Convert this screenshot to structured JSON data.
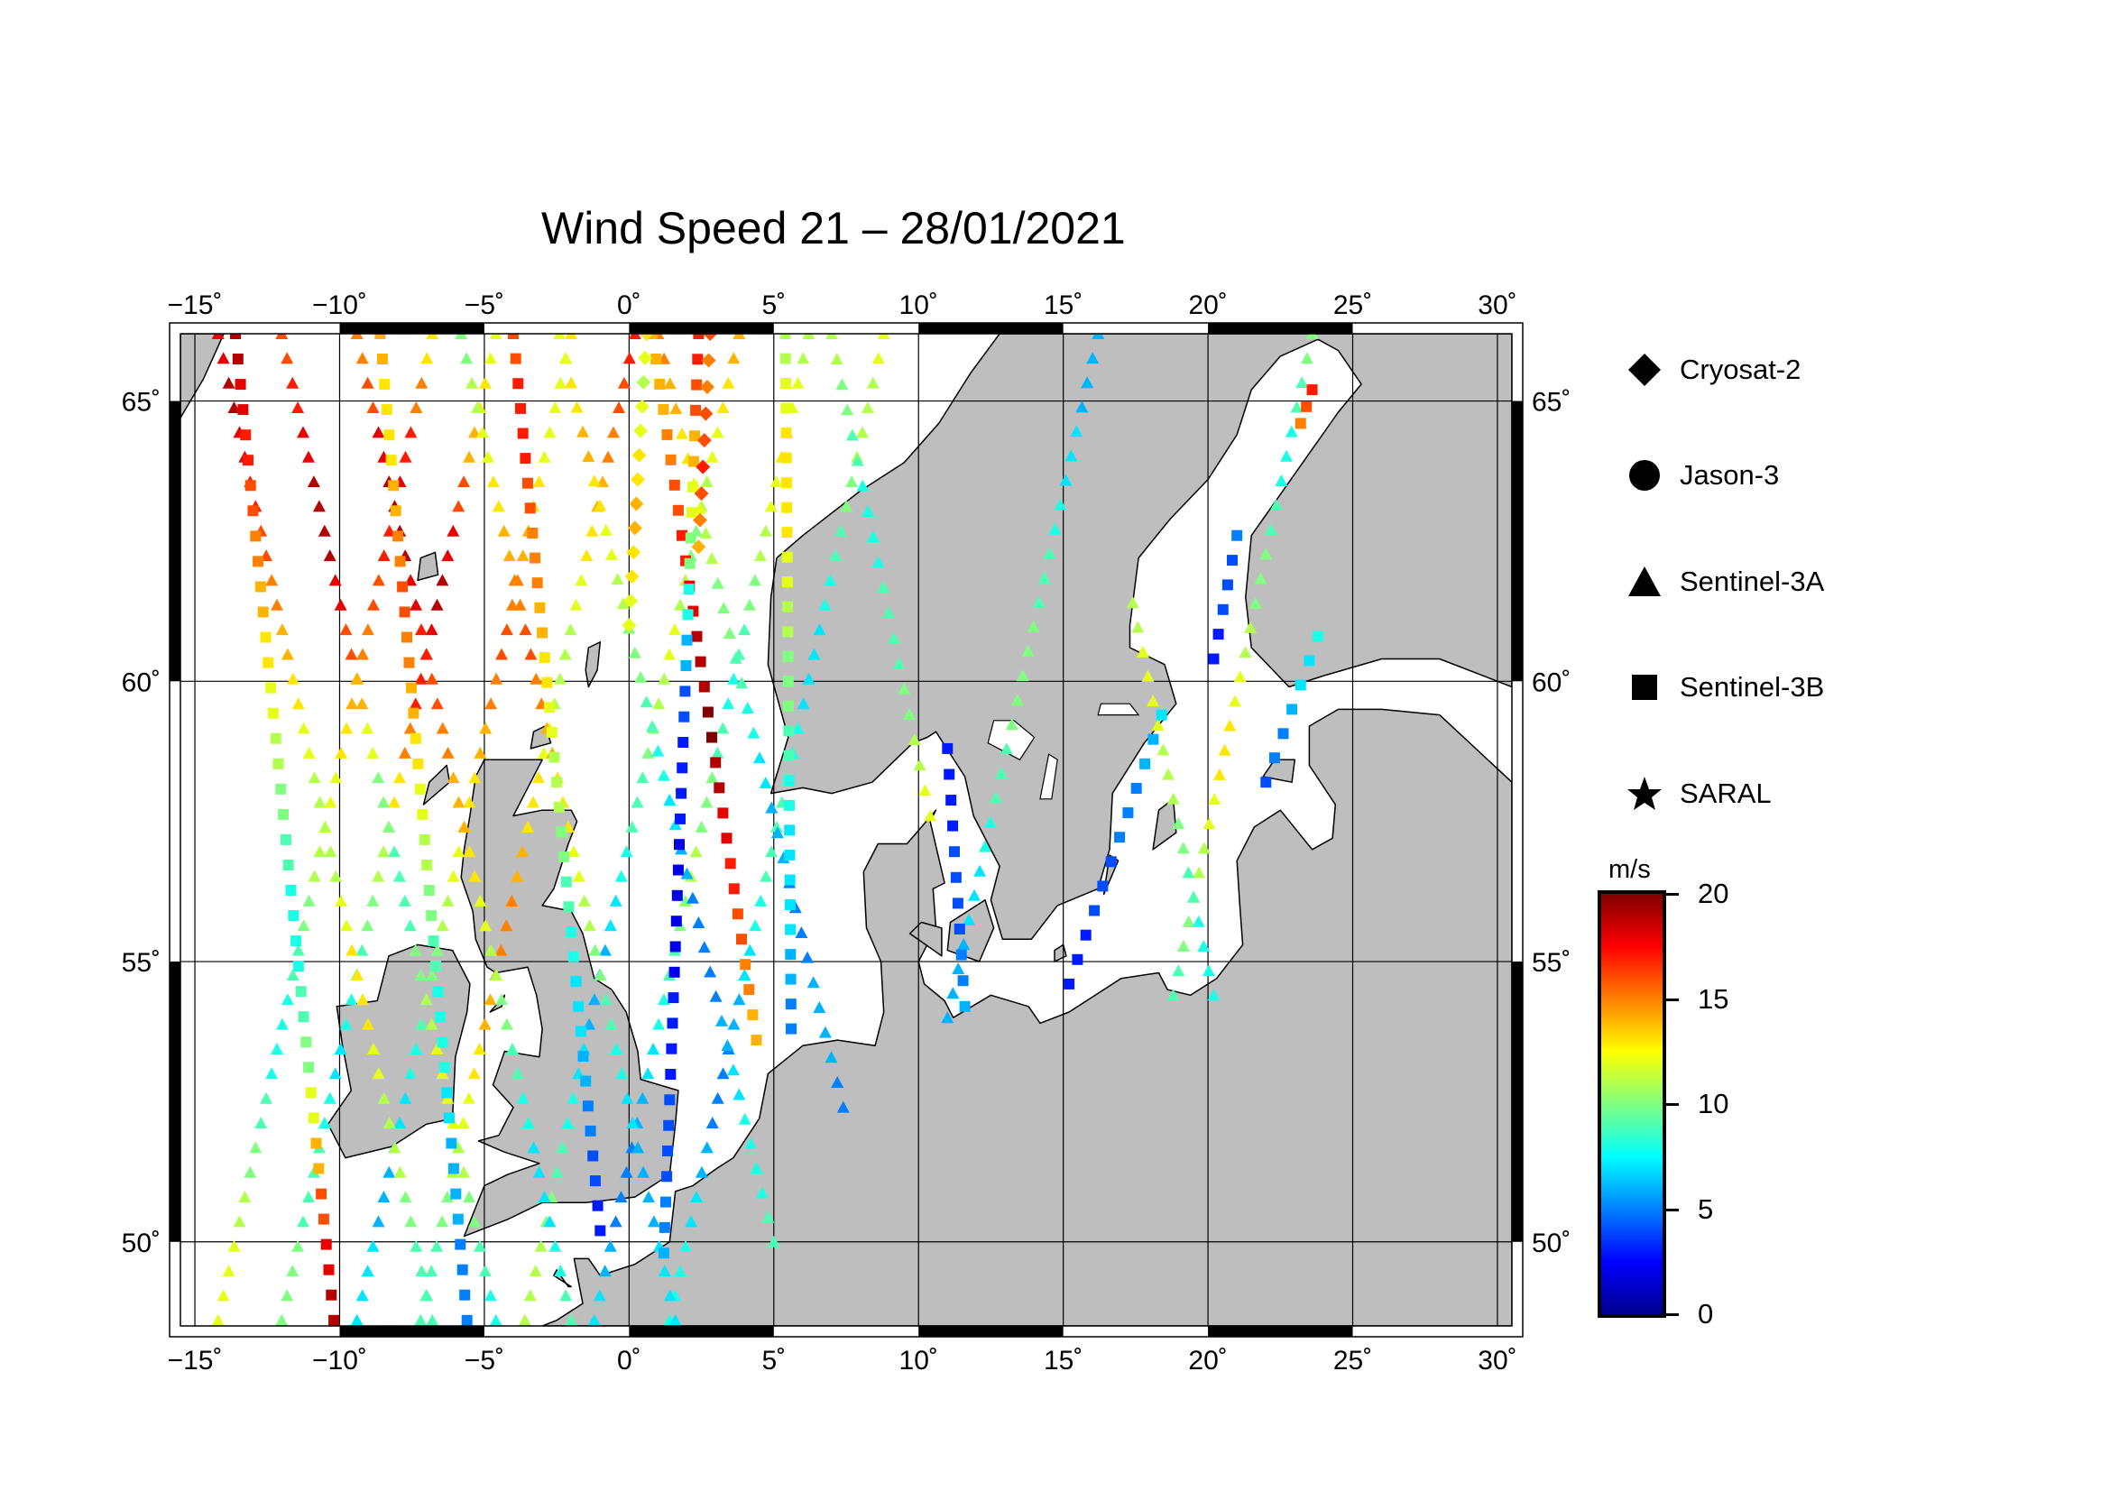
{
  "title": "Wind Speed 21 – 28/01/2021",
  "map": {
    "lon_range": [
      -15.5,
      30.5
    ],
    "lat_range": [
      48.5,
      66.2
    ],
    "lon_ticks": [
      -15,
      -10,
      -5,
      0,
      5,
      10,
      15,
      20,
      25,
      30
    ],
    "lon_tick_labels": [
      "−15˚",
      "−10˚",
      "−5˚",
      "0˚",
      "5˚",
      "10˚",
      "15˚",
      "20˚",
      "25˚",
      "30˚"
    ],
    "lat_ticks": [
      50,
      55,
      60,
      65
    ],
    "lat_tick_labels": [
      "50˚",
      "55˚",
      "60˚",
      "65˚"
    ],
    "land_color": "#bebebe",
    "sea_color": "#ffffff",
    "grid_color": "#000000",
    "tracks": [
      {
        "mission": "Sentinel-3A",
        "start": [
          -14.2,
          48.6
        ],
        "end": [
          -6.8,
          66.2
        ],
        "wind": [
          12,
          12,
          11,
          10,
          9,
          8,
          8,
          9,
          10,
          11,
          12,
          13,
          14,
          15,
          16,
          17,
          18,
          17,
          15,
          13
        ]
      },
      {
        "mission": "Sentinel-3A",
        "start": [
          -12.0,
          48.6
        ],
        "end": [
          -4.6,
          66.2
        ],
        "wind": [
          10,
          10,
          9,
          9,
          8,
          7,
          8,
          9,
          10,
          11,
          13,
          15,
          17,
          18,
          19,
          18,
          16,
          14,
          13,
          12
        ]
      },
      {
        "mission": "Sentinel-3A",
        "start": [
          -9.4,
          48.6
        ],
        "end": [
          -2.0,
          66.2
        ],
        "wind": [
          7,
          7,
          6,
          6,
          7,
          8,
          9,
          10,
          11,
          12,
          13,
          14,
          15,
          16,
          15,
          14,
          13,
          12,
          12,
          13
        ]
      },
      {
        "mission": "Sentinel-3A",
        "start": [
          -7.2,
          48.6
        ],
        "end": [
          0.2,
          66.2
        ],
        "wind": [
          9,
          9,
          10,
          11,
          12,
          13,
          14,
          15,
          15,
          14,
          13,
          12,
          11,
          11,
          12,
          13,
          14,
          15,
          16,
          17
        ]
      },
      {
        "mission": "Sentinel-3A",
        "start": [
          -3.6,
          48.6
        ],
        "end": [
          3.8,
          66.2
        ],
        "wind": [
          11,
          11,
          10,
          9,
          8,
          7,
          6,
          6,
          7,
          8,
          9,
          10,
          11,
          12,
          11,
          10,
          11,
          12,
          13,
          14
        ]
      },
      {
        "mission": "Sentinel-3A",
        "start": [
          -1.2,
          48.6
        ],
        "end": [
          6.2,
          66.2
        ],
        "wind": [
          7,
          6,
          5,
          5,
          6,
          7,
          8,
          9,
          10,
          11,
          10,
          9,
          8,
          9,
          10,
          11,
          12,
          13,
          12,
          11
        ]
      },
      {
        "mission": "Sentinel-3A",
        "start": [
          1.4,
          48.6
        ],
        "end": [
          8.8,
          66.2
        ],
        "wind": [
          8,
          8,
          7,
          6,
          5,
          5,
          6,
          7,
          8,
          9,
          9,
          8,
          7,
          7,
          8,
          9,
          10,
          11,
          11,
          12
        ]
      },
      {
        "mission": "Sentinel-3A",
        "start": [
          11.0,
          54.0
        ],
        "end": [
          16.2,
          66.2
        ],
        "wind": [
          6,
          6,
          7,
          8,
          9,
          10,
          10,
          9,
          8,
          7,
          6,
          6
        ]
      },
      {
        "mission": "Sentinel-3A",
        "start": [
          18.8,
          54.4
        ],
        "end": [
          23.6,
          66.2
        ],
        "wind": [
          9,
          10,
          11,
          12,
          13,
          12,
          11,
          10,
          9,
          8,
          9,
          10
        ]
      },
      {
        "mission": "Sentinel-3A",
        "start": [
          -6.8,
          48.6
        ],
        "end": [
          -14.2,
          66.2
        ],
        "wind": [
          9,
          9,
          10,
          11,
          11,
          12,
          13,
          13,
          12,
          11,
          11,
          12,
          13,
          14,
          15,
          16,
          17,
          18,
          19,
          18
        ]
      },
      {
        "mission": "Sentinel-3A",
        "start": [
          -4.6,
          48.6
        ],
        "end": [
          -12.0,
          66.2
        ],
        "wind": [
          8,
          9,
          10,
          11,
          12,
          12,
          11,
          10,
          9,
          9,
          10,
          12,
          14,
          16,
          18,
          19,
          19,
          18,
          17,
          16
        ]
      },
      {
        "mission": "Sentinel-3A",
        "start": [
          -2.0,
          48.6
        ],
        "end": [
          -9.4,
          66.2
        ],
        "wind": [
          9,
          8,
          7,
          7,
          8,
          9,
          10,
          11,
          12,
          13,
          14,
          15,
          16,
          17,
          18,
          19,
          19,
          18,
          16,
          15
        ]
      },
      {
        "mission": "Sentinel-3A",
        "start": [
          1.6,
          48.6
        ],
        "end": [
          -5.8,
          66.2
        ],
        "wind": [
          7,
          7,
          6,
          6,
          7,
          8,
          9,
          10,
          11,
          12,
          13,
          14,
          15,
          16,
          15,
          14,
          13,
          12,
          11,
          10
        ]
      },
      {
        "mission": "Sentinel-3A",
        "start": [
          5.0,
          50.0
        ],
        "end": [
          -2.4,
          66.2
        ],
        "wind": [
          9,
          8,
          8,
          7,
          6,
          5,
          5,
          6,
          7,
          8,
          9,
          10,
          11,
          12,
          13,
          14,
          13,
          12
        ]
      },
      {
        "mission": "Sentinel-3A",
        "start": [
          7.4,
          52.4
        ],
        "end": [
          1.0,
          66.2
        ],
        "wind": [
          5,
          6,
          6,
          5,
          5,
          6,
          7,
          8,
          9,
          10,
          11,
          12,
          13,
          14,
          15
        ]
      },
      {
        "mission": "Sentinel-3A",
        "start": [
          10.4,
          57.6
        ],
        "end": [
          7.0,
          66.2
        ],
        "wind": [
          12,
          11,
          10,
          9,
          9,
          8,
          8,
          9,
          10,
          11
        ]
      },
      {
        "mission": "Sentinel-3A",
        "start": [
          20.2,
          54.4
        ],
        "end": [
          17.4,
          61.4
        ],
        "wind": [
          8,
          8,
          9,
          10,
          11,
          12,
          12,
          11
        ]
      },
      {
        "mission": "Sentinel-3B",
        "start": [
          -10.2,
          48.6
        ],
        "end": [
          -13.6,
          66.2
        ],
        "wind": [
          19,
          18,
          16,
          14,
          12,
          10,
          9,
          8,
          8,
          9,
          10,
          11,
          12,
          13,
          14,
          15,
          16,
          17,
          18,
          19
        ]
      },
      {
        "mission": "Sentinel-3B",
        "start": [
          -5.6,
          48.6
        ],
        "end": [
          -8.6,
          66.2
        ],
        "wind": [
          5,
          5,
          6,
          6,
          7,
          8,
          8,
          9,
          10,
          11,
          12,
          13,
          14,
          15,
          16,
          15,
          14,
          13,
          13,
          14
        ]
      },
      {
        "mission": "Sentinel-3B",
        "start": [
          -1.0,
          50.2
        ],
        "end": [
          -4.0,
          66.2
        ],
        "wind": [
          3,
          4,
          5,
          6,
          7,
          8,
          9,
          10,
          11,
          12,
          13,
          14,
          15,
          16,
          17,
          17,
          16
        ]
      },
      {
        "mission": "Sentinel-3B",
        "start": [
          4.4,
          53.6
        ],
        "end": [
          0.8,
          66.2
        ],
        "wind": [
          14,
          15,
          16,
          17,
          18,
          19,
          20,
          19,
          18,
          17,
          16,
          15,
          14,
          14
        ]
      },
      {
        "mission": "Sentinel-3B",
        "start": [
          1.2,
          49.8
        ],
        "end": [
          2.4,
          66.2
        ],
        "wind": [
          6,
          5,
          4,
          4,
          3,
          3,
          2,
          2,
          2,
          3,
          3,
          4,
          6,
          8,
          10,
          12,
          14,
          16,
          17
        ]
      },
      {
        "mission": "Sentinel-3B",
        "start": [
          5.6,
          53.8
        ],
        "end": [
          5.4,
          66.2
        ],
        "wind": [
          5,
          6,
          7,
          7,
          8,
          9,
          10,
          11,
          12,
          13,
          13,
          12,
          11
        ]
      },
      {
        "mission": "Sentinel-3B",
        "start": [
          11.6,
          54.2
        ],
        "end": [
          11.0,
          58.8
        ],
        "wind": [
          6,
          5,
          4,
          4,
          3,
          3
        ]
      },
      {
        "mission": "Sentinel-3B",
        "start": [
          15.2,
          54.6
        ],
        "end": [
          18.4,
          59.4
        ],
        "wind": [
          3,
          3,
          4,
          4,
          5,
          5,
          6,
          7
        ]
      },
      {
        "mission": "Sentinel-3B",
        "start": [
          20.2,
          60.4
        ],
        "end": [
          21.0,
          62.6
        ],
        "wind": [
          3,
          3,
          4,
          4,
          5
        ]
      },
      {
        "mission": "Sentinel-3B",
        "start": [
          22.0,
          58.2
        ],
        "end": [
          23.8,
          60.8
        ],
        "wind": [
          4,
          5,
          6,
          7,
          8
        ]
      },
      {
        "mission": "Sentinel-3B",
        "start": [
          23.2,
          64.6
        ],
        "end": [
          23.6,
          65.2
        ],
        "wind": [
          15,
          16,
          17
        ]
      },
      {
        "mission": "Cryosat-2",
        "start": [
          0.0,
          61.0
        ],
        "end": [
          0.6,
          66.2
        ],
        "wind": [
          12,
          12,
          13,
          13,
          14,
          14,
          13,
          12,
          12,
          11,
          12,
          13
        ]
      },
      {
        "mission": "Cryosat-2",
        "start": [
          2.4,
          62.4
        ],
        "end": [
          2.8,
          66.2
        ],
        "wind": [
          14,
          15,
          16,
          17,
          16,
          15,
          15,
          16
        ]
      }
    ]
  },
  "legend": {
    "items": [
      {
        "label": "Cryosat-2",
        "icon": "diamond-icon"
      },
      {
        "label": "Jason-3",
        "icon": "circle-icon"
      },
      {
        "label": "Sentinel-3A",
        "icon": "triangle-icon"
      },
      {
        "label": "Sentinel-3B",
        "icon": "square-icon"
      },
      {
        "label": "SARAL",
        "icon": "star-icon"
      }
    ]
  },
  "colorbar": {
    "unit": "m/s",
    "min": 0,
    "max": 20,
    "ticks": [
      0,
      5,
      10,
      15,
      20
    ],
    "tick_labels": [
      "0",
      "5",
      "10",
      "15",
      "20"
    ],
    "colors": [
      "#00008f",
      "#0000ff",
      "#0080ff",
      "#00ffff",
      "#80ff80",
      "#ffff00",
      "#ff8000",
      "#ff0000",
      "#800000"
    ]
  }
}
